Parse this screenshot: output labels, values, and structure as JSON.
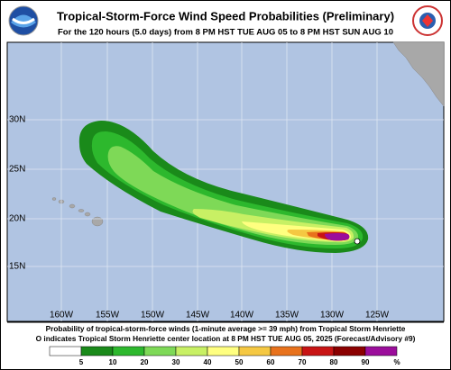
{
  "header": {
    "title": "Tropical-Storm-Force Wind Speed Probabilities (Preliminary)",
    "subtitle": "For the 120 hours (5.0 days) from 8 PM HST TUE AUG 05 to 8 PM HST SUN AUG 10"
  },
  "map": {
    "lat_labels": [
      "30N",
      "25N",
      "20N",
      "15N"
    ],
    "lon_labels": [
      "160W",
      "155W",
      "150W",
      "145W",
      "140W",
      "135W",
      "130W",
      "125W"
    ]
  },
  "caption": [
    "Probability of tropical-storm-force winds (1-minute average >= 39 mph) from Tropical Storm Henriette",
    "O indicates Tropical Storm Henriette center location at 8 PM HST TUE AUG 05, 2025 (Forecast/Advisory #9)"
  ],
  "legend": {
    "labels": [
      "5",
      "10",
      "20",
      "30",
      "40",
      "50",
      "60",
      "70",
      "80",
      "90",
      "%"
    ]
  }
}
